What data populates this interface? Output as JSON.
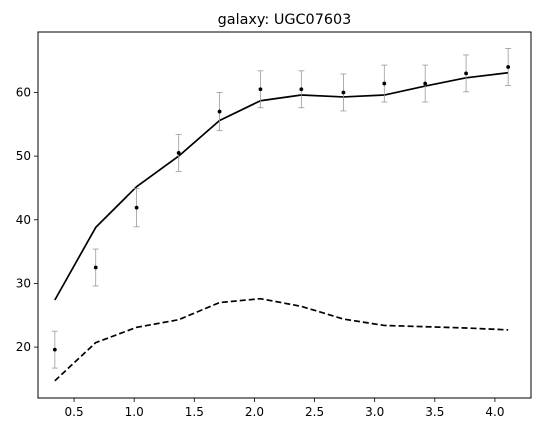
{
  "chart_data": {
    "type": "line",
    "title": "galaxy: UGC07603",
    "xlabel": "",
    "ylabel": "",
    "xlim": [
      0.2,
      4.3
    ],
    "ylim": [
      12,
      69.5
    ],
    "x_ticks": [
      0.5,
      1.0,
      1.5,
      2.0,
      2.5,
      3.0,
      3.5,
      4.0
    ],
    "x_tick_labels": [
      "0.5",
      "1.0",
      "1.5",
      "2.0",
      "2.5",
      "3.0",
      "3.5",
      "4.0"
    ],
    "y_ticks": [
      20,
      30,
      40,
      50,
      60
    ],
    "y_tick_labels": [
      "20",
      "30",
      "40",
      "50",
      "60"
    ],
    "grid": false,
    "legend": "none",
    "colors": {
      "line": "#000000",
      "points": "#000000",
      "errorbars": "#999999"
    },
    "observed": {
      "x": [
        0.34,
        0.68,
        1.02,
        1.37,
        1.71,
        2.05,
        2.39,
        2.74,
        3.08,
        3.42,
        3.76,
        4.11
      ],
      "y": [
        19.6,
        32.5,
        41.9,
        50.5,
        57.0,
        60.5,
        60.5,
        60.0,
        61.4,
        61.4,
        63.0,
        64.0
      ],
      "yerr": [
        2.9,
        2.9,
        3.0,
        2.9,
        3.0,
        2.9,
        2.9,
        2.9,
        2.9,
        2.9,
        2.9,
        2.9
      ]
    },
    "series": [
      {
        "style": "solid",
        "x": [
          0.34,
          0.68,
          1.02,
          1.37,
          1.71,
          2.05,
          2.39,
          2.74,
          3.08,
          3.42,
          3.76,
          4.11
        ],
        "values": [
          27.4,
          38.8,
          45.2,
          50.0,
          55.6,
          58.7,
          59.6,
          59.3,
          59.6,
          61.0,
          62.3,
          63.1
        ]
      },
      {
        "style": "dashed",
        "x": [
          0.34,
          0.68,
          1.02,
          1.37,
          1.71,
          2.05,
          2.39,
          2.74,
          3.08,
          3.42,
          3.76,
          4.11
        ],
        "values": [
          14.7,
          20.7,
          23.1,
          24.3,
          27.0,
          27.6,
          26.4,
          24.4,
          23.4,
          23.2,
          23.0,
          22.7
        ]
      }
    ]
  }
}
